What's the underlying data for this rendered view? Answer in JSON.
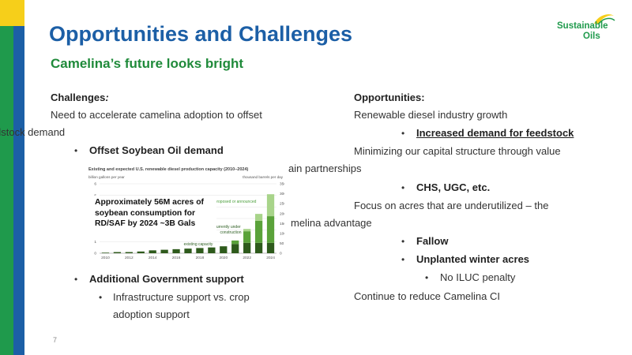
{
  "slide": {
    "title": "Opportunities and Challenges",
    "subtitle": "Camelina’s future looks bright",
    "page_number": "7"
  },
  "logo": {
    "line1": "Sustainable",
    "line2": "Oils"
  },
  "challenges": {
    "heading": "Challenges",
    "heading_suffix": ":",
    "line1": "Need to accelerate camelina adoption to offset",
    "line2": "dstock demand",
    "bullet1": "Offset Soybean Oil demand",
    "bullet2": "Additional Government support",
    "sub_bullet_line1": "Infrastructure support vs. crop",
    "sub_bullet_line2": "adoption support"
  },
  "opportunities": {
    "heading": "Opportunities:",
    "line1": "Renewable diesel industry growth",
    "bullet1": "Increased demand for feedstock",
    "line2": "Minimizing our capital structure through value",
    "line2b": "ain partnerships",
    "bullet2": "CHS, UGC, etc.",
    "line3": "Focus on acres that are underutilized – the",
    "line3b": "melina advantage",
    "bullet3": "Fallow",
    "bullet4": "Unplanted winter acres",
    "sub_bullet": "No ILUC penalty",
    "line4": "Continue to reduce Camelina CI"
  },
  "callout": {
    "text": "Approximately 56M acres of soybean consumption for RD/SAF by 2024 ~3B Gals"
  },
  "chart_data": {
    "type": "bar",
    "title": "Existing and expected U.S. renewable diesel production capacity (2010–2024)",
    "ylabel_left": "billion gallons per year",
    "ylabel_right": "thousand barrels per day",
    "ylim": [
      0,
      6
    ],
    "ylim_right": [
      0,
      350
    ],
    "yticks_left": [
      "0",
      "1",
      "2",
      "3",
      "4",
      "5",
      "6"
    ],
    "yticks_right": [
      "0",
      "50",
      "100",
      "150",
      "200",
      "250",
      "300",
      "350"
    ],
    "x_tick_labels": [
      "2010",
      "2012",
      "2014",
      "2016",
      "2018",
      "2020",
      "2022",
      "2024"
    ],
    "categories": [
      "2010",
      "2011",
      "2012",
      "2013",
      "2014",
      "2015",
      "2016",
      "2017",
      "2018",
      "2019",
      "2020",
      "2021",
      "2022",
      "2023",
      "2024"
    ],
    "series": [
      {
        "name": "existing capacity",
        "color": "#2e5a1c",
        "values": [
          0.05,
          0.1,
          0.1,
          0.15,
          0.25,
          0.3,
          0.35,
          0.4,
          0.45,
          0.5,
          0.6,
          0.8,
          0.9,
          0.9,
          0.9
        ]
      },
      {
        "name": "currently under construction",
        "color": "#5aa23a",
        "values": [
          0,
          0,
          0,
          0,
          0,
          0,
          0,
          0,
          0,
          0,
          0,
          0.3,
          1.0,
          1.9,
          2.3
        ]
      },
      {
        "name": "proposed or announced",
        "color": "#a8d48a",
        "values": [
          0,
          0,
          0,
          0,
          0,
          0,
          0,
          0,
          0,
          0,
          0,
          0,
          0.2,
          0.6,
          1.9
        ]
      }
    ],
    "annotations": [
      "proposed or announced",
      "currently under",
      "construction",
      "existing capacity"
    ]
  }
}
